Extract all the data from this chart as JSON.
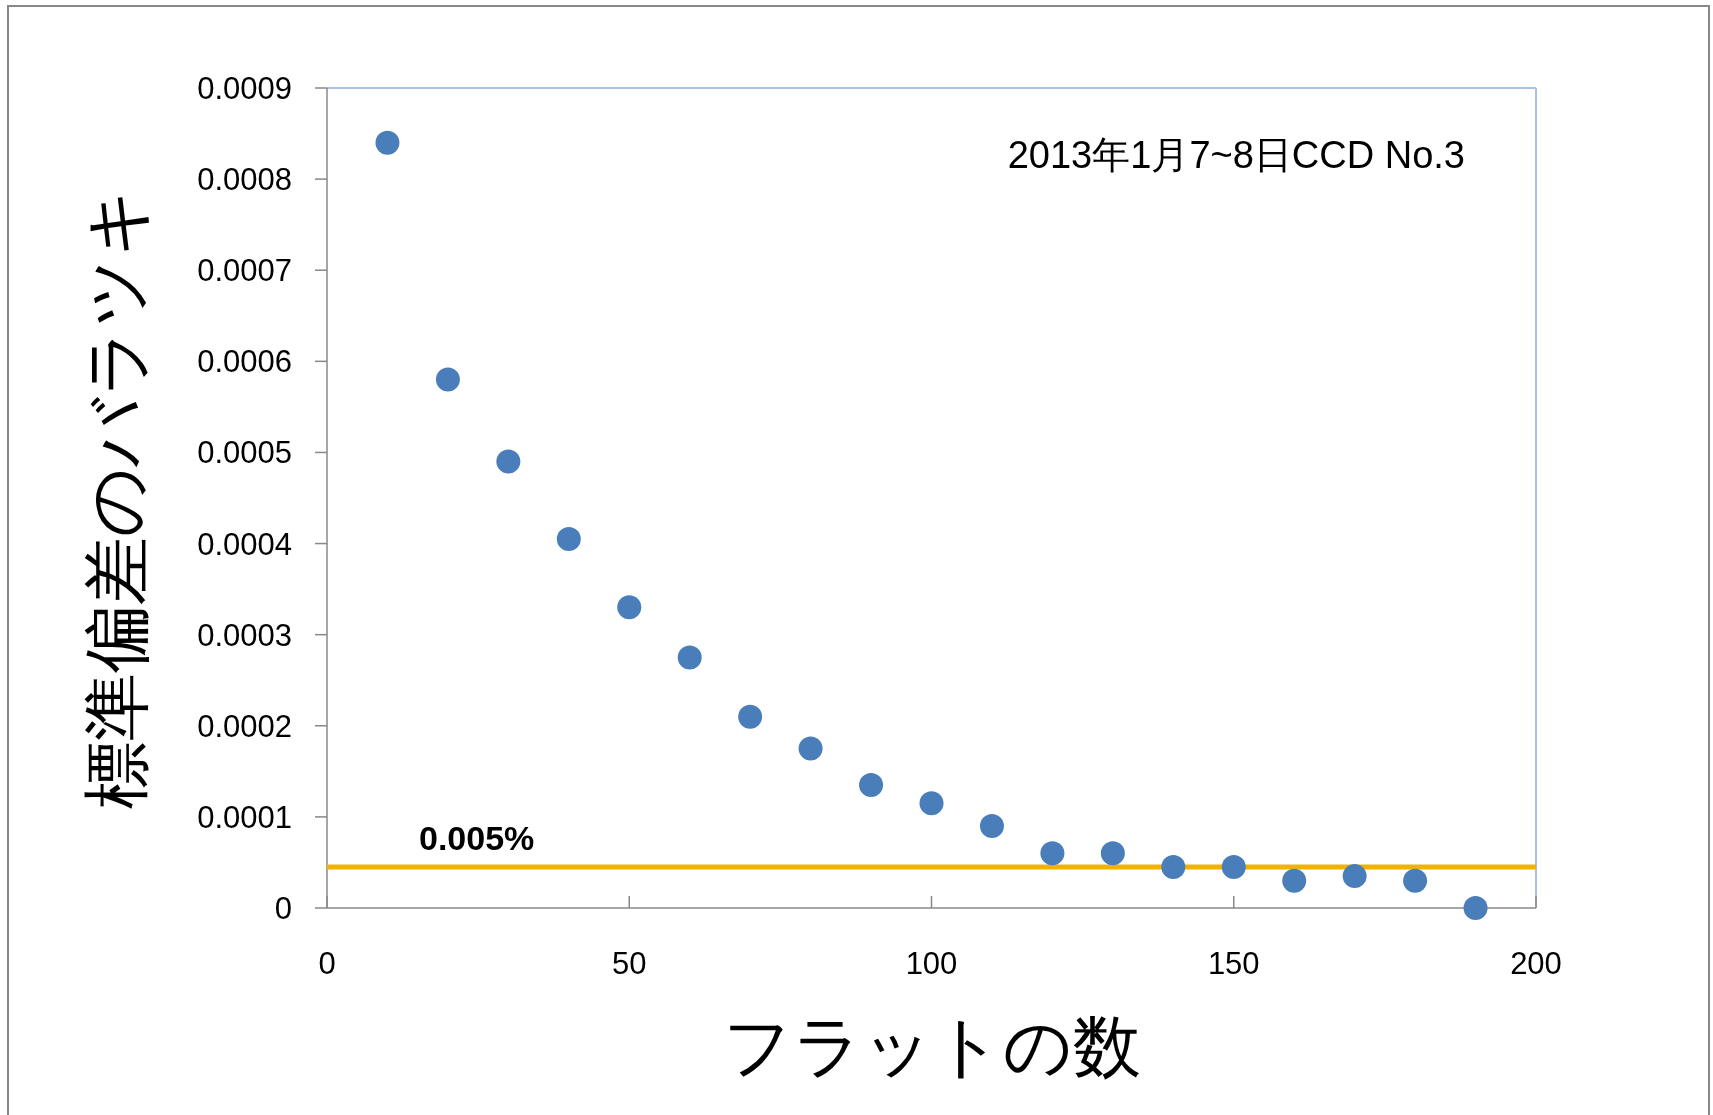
{
  "chart_data": {
    "type": "scatter",
    "xlabel": "フラットの数",
    "ylabel": "標準偏差のバラツキ",
    "annotations": [
      "2013年1月7~8日CCD No.3"
    ],
    "x": [
      10,
      20,
      30,
      40,
      50,
      60,
      70,
      80,
      90,
      100,
      110,
      120,
      130,
      140,
      150,
      160,
      170,
      180,
      190
    ],
    "series": [
      {
        "color": "#4a7ebb",
        "values": [
          0.00084,
          0.00058,
          0.00049,
          0.000405,
          0.00033,
          0.000275,
          0.00021,
          0.000175,
          0.000135,
          0.000115,
          9e-05,
          6e-05,
          6e-05,
          4.5e-05,
          4.5e-05,
          3e-05,
          3.5e-05,
          3e-05,
          0
        ]
      }
    ],
    "xlim": [
      0,
      200
    ],
    "xticks": [
      0,
      50,
      100,
      150,
      200
    ],
    "ylim": [
      0,
      0.0009
    ],
    "yticks": [
      0,
      0.0001,
      0.0002,
      0.0003,
      0.0004,
      0.0005,
      0.0006,
      0.0007,
      0.0008,
      0.0009
    ],
    "ref_lines": [
      {
        "axis": "y",
        "value": 4.5e-05,
        "label": "0.005%",
        "color": "#f0b400"
      }
    ],
    "marker": "circle",
    "grid": false
  }
}
